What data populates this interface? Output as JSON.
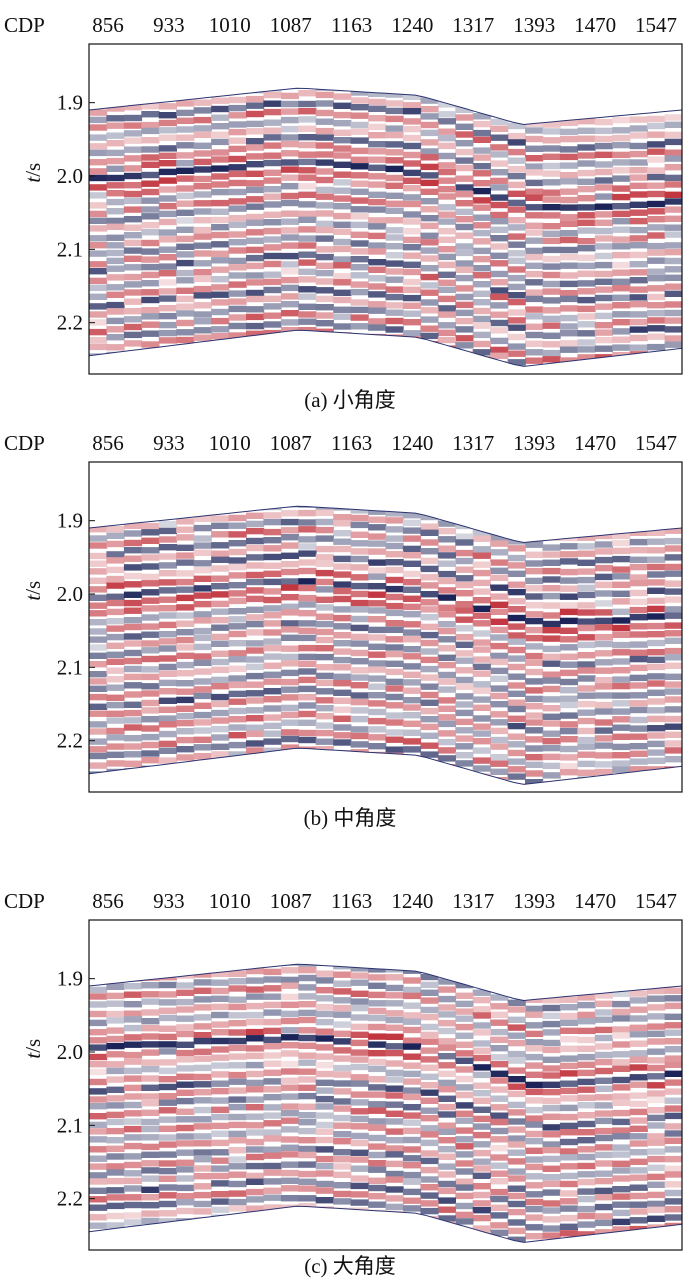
{
  "chart_data": [
    {
      "type": "heatmap",
      "caption": "(a) 小角度",
      "x_axis_label": "CDP",
      "x_ticks": [
        "856",
        "933",
        "1010",
        "1087",
        "1163",
        "1240",
        "1317",
        "1393",
        "1470",
        "1547"
      ],
      "y_axis_label": "t/s",
      "y_ticks": [
        "1.9",
        "2.0",
        "2.1",
        "2.2"
      ],
      "x_range": [
        856,
        1547
      ],
      "y_range": [
        1.82,
        2.27
      ],
      "colormap": [
        "#1b2358",
        "#ffffff",
        "#c0303a"
      ],
      "section_top_s": [
        [
          856,
          1.91
        ],
        [
          1100,
          1.88
        ],
        [
          1240,
          1.89
        ],
        [
          1360,
          1.93
        ],
        [
          1547,
          1.91
        ]
      ],
      "section_bottom_s": [
        [
          856,
          2.245
        ],
        [
          1100,
          2.21
        ],
        [
          1240,
          2.22
        ],
        [
          1360,
          2.26
        ],
        [
          1547,
          2.235
        ]
      ],
      "strong_trough_s": [
        [
          856,
          2.01
        ],
        [
          1100,
          1.985
        ],
        [
          1240,
          2.0
        ],
        [
          1380,
          2.05
        ],
        [
          1547,
          2.04
        ]
      ]
    },
    {
      "type": "heatmap",
      "caption": "(b) 中角度",
      "x_axis_label": "CDP",
      "x_ticks": [
        "856",
        "933",
        "1010",
        "1087",
        "1163",
        "1240",
        "1317",
        "1393",
        "1470",
        "1547"
      ],
      "y_axis_label": "t/s",
      "y_ticks": [
        "1.9",
        "2.0",
        "2.1",
        "2.2"
      ],
      "x_range": [
        856,
        1547
      ],
      "y_range": [
        1.82,
        2.27
      ],
      "colormap": [
        "#1b2358",
        "#ffffff",
        "#c0303a"
      ],
      "section_top_s": [
        [
          856,
          1.91
        ],
        [
          1100,
          1.88
        ],
        [
          1240,
          1.89
        ],
        [
          1360,
          1.93
        ],
        [
          1547,
          1.91
        ]
      ],
      "section_bottom_s": [
        [
          856,
          2.245
        ],
        [
          1100,
          2.21
        ],
        [
          1240,
          2.22
        ],
        [
          1360,
          2.26
        ],
        [
          1547,
          2.235
        ]
      ],
      "strong_trough_s": [
        [
          856,
          2.01
        ],
        [
          1100,
          1.985
        ],
        [
          1240,
          2.0
        ],
        [
          1380,
          2.045
        ],
        [
          1547,
          2.035
        ]
      ]
    },
    {
      "type": "heatmap",
      "caption": "(c) 大角度",
      "x_axis_label": "CDP",
      "x_ticks": [
        "856",
        "933",
        "1010",
        "1087",
        "1163",
        "1240",
        "1317",
        "1393",
        "1470",
        "1547"
      ],
      "y_axis_label": "t/s",
      "y_ticks": [
        "1.9",
        "2.0",
        "2.1",
        "2.2"
      ],
      "x_range": [
        856,
        1547
      ],
      "y_range": [
        1.82,
        2.27
      ],
      "colormap": [
        "#1b2358",
        "#ffffff",
        "#c0303a"
      ],
      "section_top_s": [
        [
          856,
          1.91
        ],
        [
          1100,
          1.88
        ],
        [
          1240,
          1.89
        ],
        [
          1360,
          1.93
        ],
        [
          1547,
          1.91
        ]
      ],
      "section_bottom_s": [
        [
          856,
          2.245
        ],
        [
          1100,
          2.21
        ],
        [
          1240,
          2.22
        ],
        [
          1360,
          2.26
        ],
        [
          1547,
          2.235
        ]
      ],
      "strong_trough_s": [
        [
          856,
          2.0
        ],
        [
          1100,
          1.985
        ],
        [
          1240,
          2.0
        ],
        [
          1380,
          2.05
        ],
        [
          1547,
          2.035
        ]
      ]
    }
  ]
}
